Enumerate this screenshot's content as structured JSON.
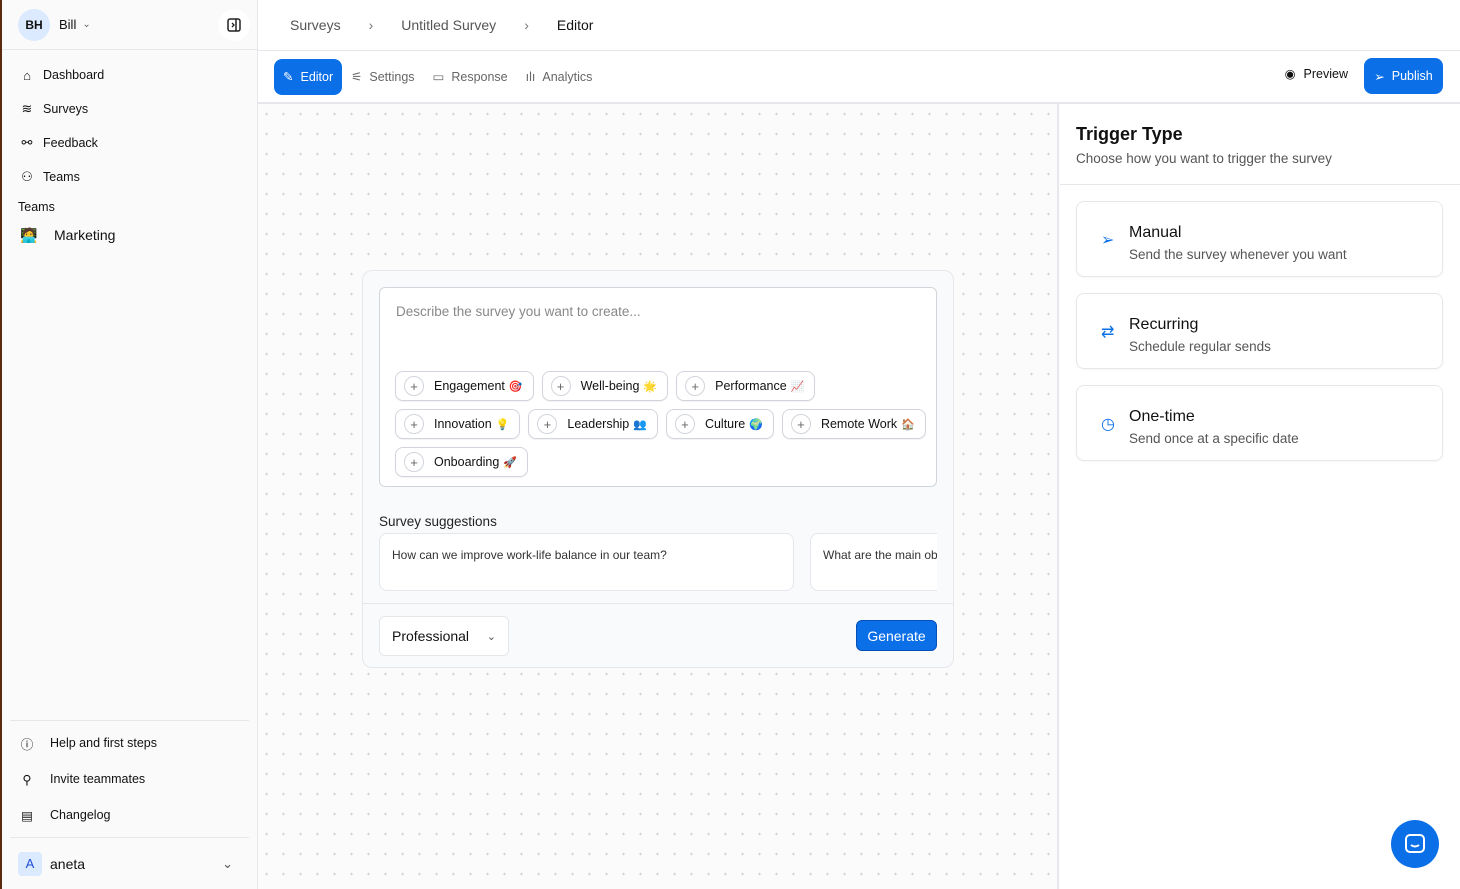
{
  "sidebar": {
    "user": {
      "initials": "BH",
      "name": "Bill"
    },
    "items": [
      {
        "label": "Dashboard",
        "icon": "home-icon"
      },
      {
        "label": "Surveys",
        "icon": "layers-icon"
      },
      {
        "label": "Feedback",
        "icon": "feedback-icon"
      },
      {
        "label": "Teams",
        "icon": "users-icon"
      }
    ],
    "section": "Teams",
    "team": {
      "label": "Marketing",
      "emoji": "🧑‍💻"
    },
    "bottom": [
      {
        "label": "Help and first steps"
      },
      {
        "label": "Invite teammates"
      },
      {
        "label": "Changelog"
      }
    ],
    "account": {
      "initial": "A",
      "name": "aneta"
    }
  },
  "breadcrumb": [
    "Surveys",
    "Untitled Survey",
    "Editor"
  ],
  "tabs": [
    {
      "label": "Editor"
    },
    {
      "label": "Settings"
    },
    {
      "label": "Response"
    },
    {
      "label": "Analytics"
    }
  ],
  "actions": {
    "preview": "Preview",
    "publish": "Publish"
  },
  "editor": {
    "placeholder": "Describe the survey you want to create...",
    "chips": [
      {
        "label": "Engagement",
        "emoji": "🎯"
      },
      {
        "label": "Well-being",
        "emoji": "🌟"
      },
      {
        "label": "Performance",
        "emoji": "📈"
      },
      {
        "label": "Innovation",
        "emoji": "💡"
      },
      {
        "label": "Leadership",
        "emoji": "👥"
      },
      {
        "label": "Culture",
        "emoji": "🌍"
      },
      {
        "label": "Remote Work",
        "emoji": "🏠"
      },
      {
        "label": "Onboarding",
        "emoji": "🚀"
      }
    ],
    "suggestions_title": "Survey suggestions",
    "suggestions": [
      "How can we improve work-life balance in our team?",
      "What are the main ob"
    ],
    "tone": "Professional",
    "generate": "Generate"
  },
  "panel": {
    "title": "Trigger Type",
    "subtitle": "Choose how you want to trigger the survey",
    "options": [
      {
        "title": "Manual",
        "desc": "Send the survey whenever you want"
      },
      {
        "title": "Recurring",
        "desc": "Schedule regular sends"
      },
      {
        "title": "One-time",
        "desc": "Send once at a specific date"
      }
    ]
  },
  "colors": {
    "accent": "#0b6fe8"
  }
}
